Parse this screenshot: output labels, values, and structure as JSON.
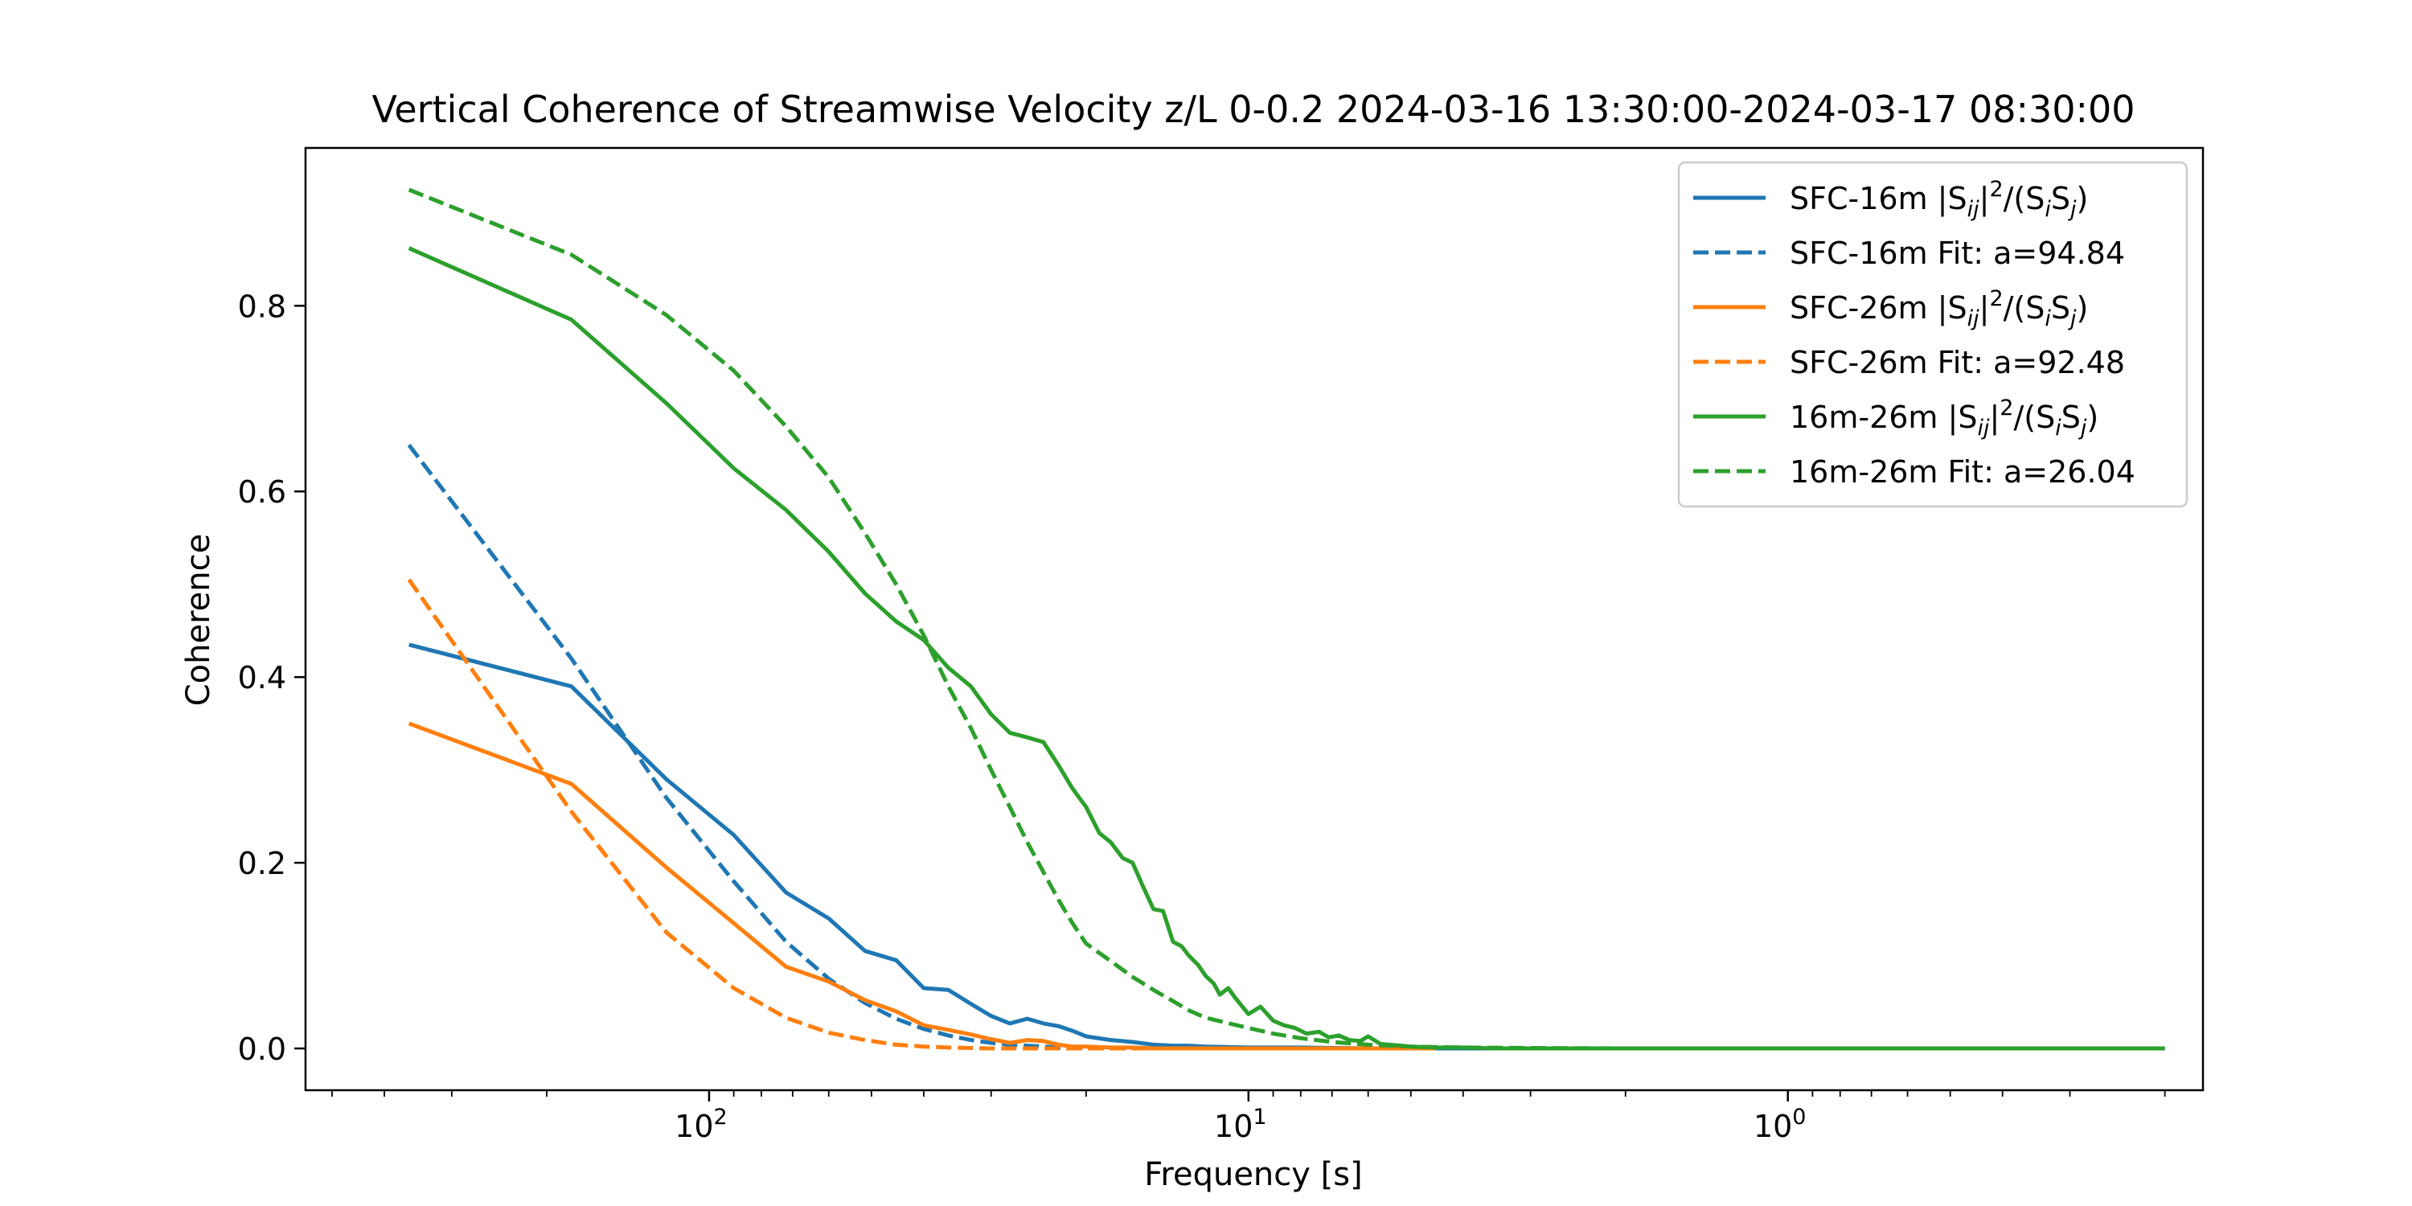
{
  "chart_data": {
    "type": "line",
    "title": "Vertical Coherence of Streamwise Velocity z/L 0-0.2 2024-03-16 13:30:00-2024-03-17 08:30:00",
    "xlabel": "Frequency [s]",
    "ylabel": "Coherence",
    "x_scale": "log",
    "x_reversed": true,
    "xlim": [
      560,
      0.17
    ],
    "ylim": [
      -0.045,
      0.97
    ],
    "x_ticks": [
      {
        "value": 100,
        "base": "10",
        "exp": "2"
      },
      {
        "value": 10,
        "base": "10",
        "exp": "1"
      },
      {
        "value": 1,
        "base": "10",
        "exp": "0"
      }
    ],
    "y_ticks": [
      {
        "value": 0.0,
        "label": "0.0"
      },
      {
        "value": 0.2,
        "label": "0.2"
      },
      {
        "value": 0.4,
        "label": "0.4"
      },
      {
        "value": 0.6,
        "label": "0.6"
      },
      {
        "value": 0.8,
        "label": "0.8"
      }
    ],
    "grid": false,
    "legend_position": "upper-right",
    "series": [
      {
        "name": "SFC-16m |Sij|²/(SiSj)",
        "color": "#1f77b4",
        "dash": "solid",
        "legend": {
          "pre": "SFC-16m |S",
          "sub1": "ij",
          "mid1": "|",
          "sup": "2",
          "mid2": "/(S",
          "sub2": "i",
          "mid3": "S",
          "sub3": "j",
          "post": ")"
        },
        "x": [
          360,
          180,
          120,
          90,
          72,
          60,
          51.4,
          45,
          40,
          36,
          32.7,
          30,
          27.7,
          25.7,
          24,
          22.5,
          21.2,
          20,
          18,
          16.4,
          15,
          13.8,
          12.9,
          12,
          10,
          8,
          6,
          4,
          2,
          1,
          0.5,
          0.3,
          0.2
        ],
        "y": [
          0.435,
          0.39,
          0.29,
          0.23,
          0.168,
          0.14,
          0.105,
          0.095,
          0.065,
          0.063,
          0.048,
          0.035,
          0.027,
          0.032,
          0.027,
          0.024,
          0.019,
          0.013,
          0.009,
          0.007,
          0.004,
          0.003,
          0.003,
          0.002,
          0.001,
          0.001,
          0.0,
          0.0,
          0.0,
          0.0,
          0.0,
          0.0,
          0.0
        ]
      },
      {
        "name": "SFC-16m Fit: a=94.84",
        "color": "#1f77b4",
        "dash": "dashed",
        "legend": {
          "pre": "SFC-16m Fit: a=94.84"
        },
        "x": [
          360,
          180,
          120,
          90,
          72,
          60,
          51.4,
          45,
          40,
          36,
          32.7,
          30,
          27.7,
          25.7,
          24,
          22.5,
          20,
          16.4,
          12.9,
          10,
          8
        ],
        "y": [
          0.65,
          0.42,
          0.27,
          0.18,
          0.115,
          0.075,
          0.049,
          0.032,
          0.021,
          0.014,
          0.009,
          0.006,
          0.004,
          0.003,
          0.002,
          0.001,
          0.0005,
          0.0,
          0.0,
          0.0,
          0.0
        ]
      },
      {
        "name": "SFC-26m |Sij|²/(SiSj)",
        "color": "#ff7f0e",
        "dash": "solid",
        "legend": {
          "pre": "SFC-26m |S",
          "sub1": "ij",
          "mid1": "|",
          "sup": "2",
          "mid2": "/(S",
          "sub2": "i",
          "mid3": "S",
          "sub3": "j",
          "post": ")"
        },
        "x": [
          360,
          180,
          120,
          90,
          72,
          60,
          51.4,
          45,
          40,
          36,
          32.7,
          30,
          27.7,
          25.7,
          24,
          22.5,
          21.2,
          20,
          18,
          16.4,
          15,
          12.9,
          10,
          8,
          6,
          4.5
        ],
        "y": [
          0.35,
          0.285,
          0.195,
          0.135,
          0.088,
          0.072,
          0.052,
          0.04,
          0.025,
          0.02,
          0.015,
          0.01,
          0.006,
          0.009,
          0.008,
          0.004,
          0.002,
          0.002,
          0.001,
          0.001,
          0.0,
          0.0,
          0.0,
          0.0,
          0.0,
          0.0
        ]
      },
      {
        "name": "SFC-26m Fit: a=92.48",
        "color": "#ff7f0e",
        "dash": "dashed",
        "legend": {
          "pre": "SFC-26m Fit: a=92.48"
        },
        "x": [
          360,
          180,
          120,
          90,
          72,
          60,
          51.4,
          45,
          40,
          36,
          32.7,
          30,
          27.7,
          25.7,
          24,
          20,
          16.4,
          12.9,
          10
        ],
        "y": [
          0.505,
          0.255,
          0.125,
          0.065,
          0.033,
          0.017,
          0.009,
          0.004,
          0.002,
          0.001,
          0.0005,
          0.0,
          0.0,
          0.0,
          0.0,
          0.0,
          0.0,
          0.0,
          0.0
        ]
      },
      {
        "name": "16m-26m |Sij|²/(SiSj)",
        "color": "#2ca02c",
        "dash": "solid",
        "legend": {
          "pre": "16m-26m |S",
          "sub1": "ij",
          "mid1": "|",
          "sup": "2",
          "mid2": "/(S",
          "sub2": "i",
          "mid3": "S",
          "sub3": "j",
          "post": ")"
        },
        "x": [
          360,
          180,
          120,
          90,
          72,
          60,
          51.4,
          45,
          40,
          36,
          32.7,
          30,
          27.7,
          25.7,
          24,
          22.5,
          21.2,
          20,
          18.9,
          18,
          17.1,
          16.4,
          15.7,
          15,
          14.4,
          13.8,
          13.3,
          12.9,
          12.4,
          12,
          11.6,
          11.3,
          10.9,
          10.6,
          10,
          9.5,
          9,
          8.6,
          8.2,
          7.8,
          7.4,
          7.1,
          6.8,
          6.5,
          6.2,
          6,
          5.7,
          5.5,
          5.2,
          5,
          4.5,
          4,
          3.5,
          3,
          2,
          1,
          0.5,
          0.3,
          0.2
        ],
        "y": [
          0.862,
          0.785,
          0.695,
          0.625,
          0.58,
          0.535,
          0.49,
          0.46,
          0.44,
          0.41,
          0.39,
          0.36,
          0.34,
          0.335,
          0.33,
          0.305,
          0.28,
          0.26,
          0.232,
          0.222,
          0.205,
          0.2,
          0.175,
          0.15,
          0.148,
          0.115,
          0.11,
          0.1,
          0.09,
          0.078,
          0.07,
          0.058,
          0.065,
          0.055,
          0.037,
          0.045,
          0.03,
          0.025,
          0.022,
          0.016,
          0.018,
          0.012,
          0.014,
          0.009,
          0.008,
          0.013,
          0.005,
          0.004,
          0.003,
          0.002,
          0.001,
          0.001,
          0.0,
          0.0,
          0.0,
          0.0,
          0.0,
          0.0,
          0.0
        ]
      },
      {
        "name": "16m-26m Fit: a=26.04",
        "color": "#2ca02c",
        "dash": "dashed",
        "legend": {
          "pre": "16m-26m Fit: a=26.04"
        },
        "x": [
          360,
          180,
          120,
          90,
          72,
          60,
          51.4,
          45,
          40,
          36,
          32.7,
          30,
          27.7,
          25.7,
          24,
          22.5,
          21.2,
          20,
          18,
          16.4,
          15,
          13.8,
          12.9,
          12,
          10,
          9,
          8,
          7,
          6,
          5,
          4,
          3,
          2,
          1,
          0.5,
          0.3,
          0.2
        ],
        "y": [
          0.925,
          0.855,
          0.79,
          0.73,
          0.67,
          0.615,
          0.555,
          0.5,
          0.445,
          0.39,
          0.345,
          0.3,
          0.26,
          0.222,
          0.19,
          0.16,
          0.135,
          0.113,
          0.094,
          0.077,
          0.063,
          0.051,
          0.041,
          0.033,
          0.022,
          0.016,
          0.011,
          0.007,
          0.004,
          0.002,
          0.001,
          0.0005,
          0.0,
          0.0,
          0.0,
          0.0,
          0.0
        ]
      }
    ]
  }
}
